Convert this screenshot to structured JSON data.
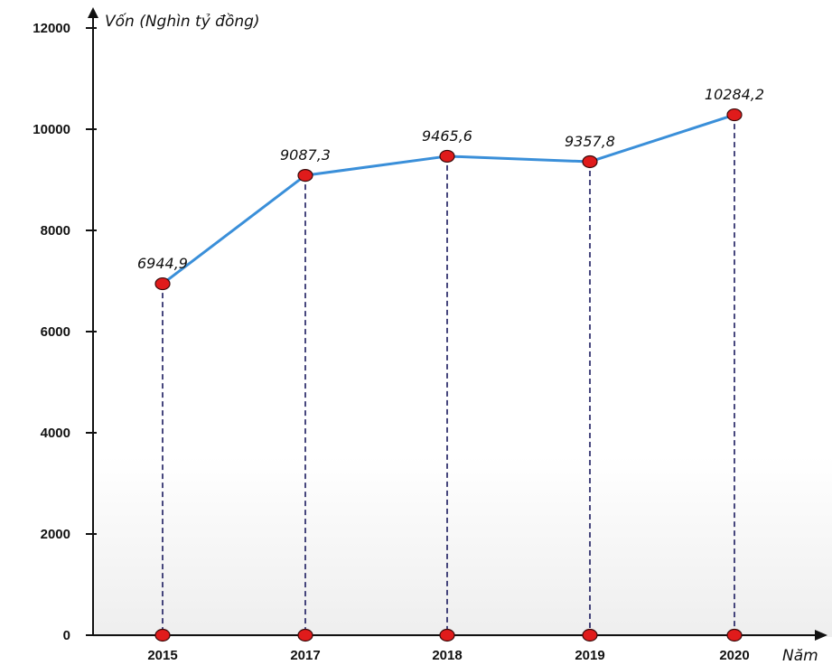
{
  "chart_data": {
    "type": "line",
    "ylabel": "Vốn  (Nghìn tỷ đồng)",
    "xlabel": "Năm",
    "categories": [
      "2015",
      "2017",
      "2018",
      "2019",
      "2020"
    ],
    "series": [
      {
        "values": [
          6944.9,
          9087.3,
          9465.6,
          9357.8,
          10284.2
        ],
        "labels": [
          "6944,9",
          "9087,3",
          "9465,6",
          "9357,8",
          "10284,2"
        ]
      }
    ],
    "yticks": [
      "0",
      "2000",
      "4000",
      "6000",
      "8000",
      "10000",
      "12000"
    ],
    "ylim": [
      0,
      12000
    ],
    "grid": false,
    "colors": {
      "line": "#3a8fd9",
      "marker": "#e01b1b",
      "drop_line": "#1a1a5e",
      "axis": "#111111"
    }
  }
}
